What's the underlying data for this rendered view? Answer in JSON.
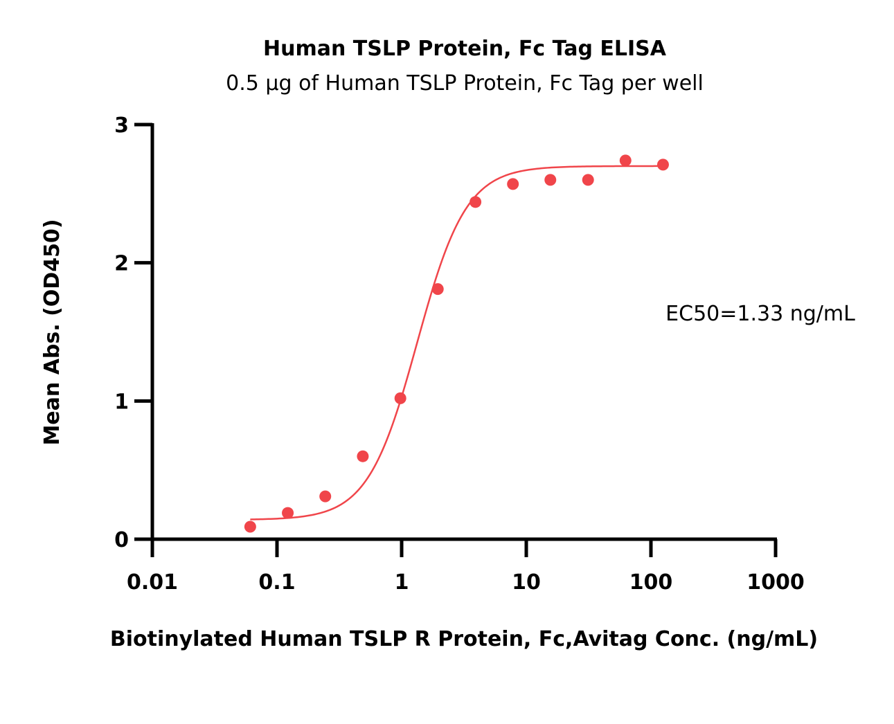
{
  "chart_data": {
    "type": "scatter",
    "title": "Human TSLP Protein, Fc Tag ELISA",
    "subtitle": "0.5 μg of Human TSLP Protein, Fc Tag per well",
    "xlabel": "Biotinylated Human TSLP R Protein, Fc,Avitag Conc. (ng/mL)",
    "ylabel": "Mean Abs. (OD450)",
    "xscale": "log",
    "xlim": [
      0.01,
      1000
    ],
    "ylim": [
      0,
      3
    ],
    "x_ticks": [
      0.01,
      0.1,
      1,
      10,
      100,
      1000
    ],
    "x_tick_labels": [
      "0.01",
      "0.1",
      "1",
      "10",
      "100",
      "1000"
    ],
    "y_ticks": [
      0,
      1,
      2,
      3
    ],
    "y_tick_labels": [
      "0",
      "1",
      "2",
      "3"
    ],
    "grid": false,
    "color": "#f0454a",
    "series": [
      {
        "x": [
          0.061,
          0.122,
          0.244,
          0.488,
          0.977,
          1.95,
          3.91,
          7.81,
          15.6,
          31.3,
          62.5,
          125
        ],
        "y": [
          0.09,
          0.19,
          0.31,
          0.6,
          1.02,
          1.81,
          2.44,
          2.57,
          2.6,
          2.6,
          2.74,
          2.71
        ]
      }
    ],
    "fit": {
      "bottom": 0.14,
      "top": 2.7,
      "ec50": 1.33,
      "hill": 2.2,
      "x_range": [
        0.061,
        125
      ]
    },
    "annotation": "EC50=1.33 ng/mL"
  }
}
